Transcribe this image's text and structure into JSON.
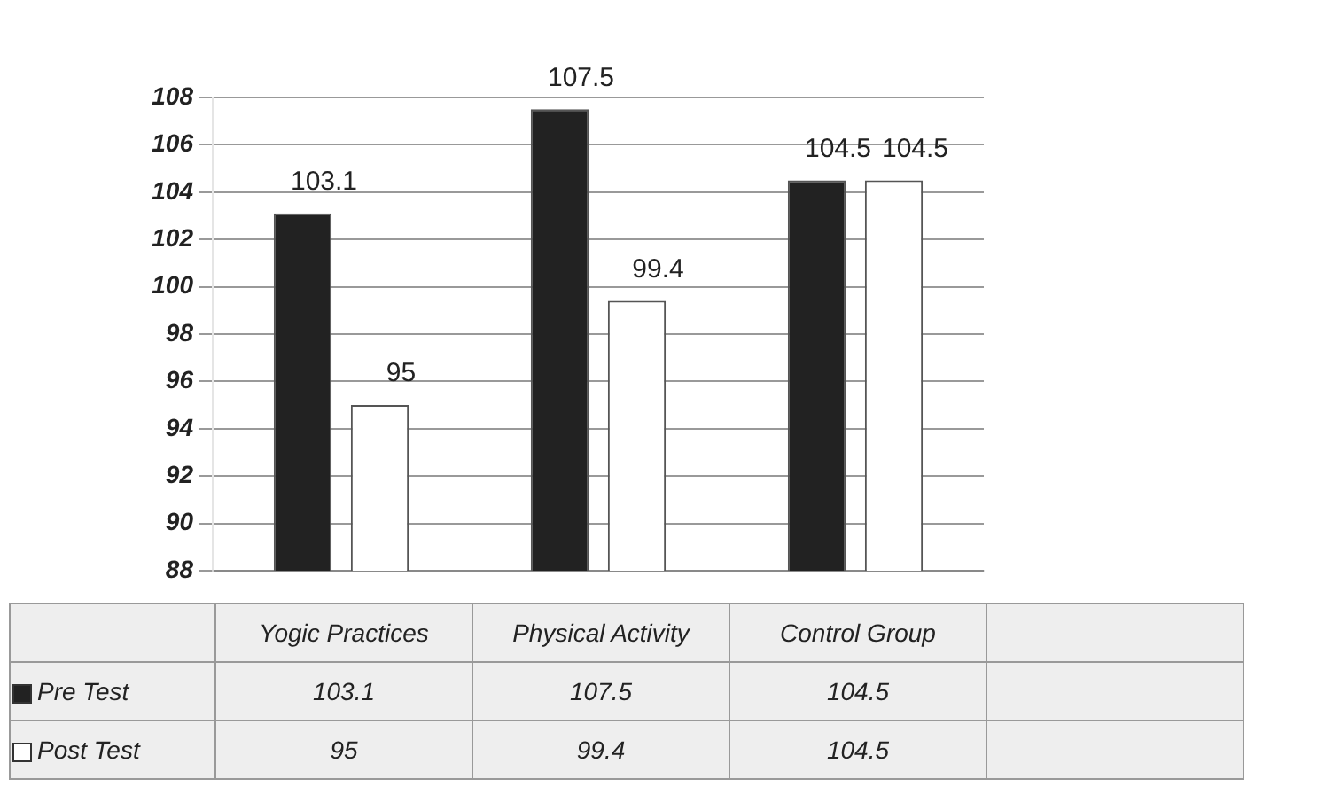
{
  "chart_data": {
    "type": "bar",
    "categories": [
      "Yogic Practices",
      "Physical Activity",
      "Control Group"
    ],
    "series": [
      {
        "name": "Pre Test",
        "color": "#222222",
        "values": [
          103.1,
          107.5,
          104.5
        ]
      },
      {
        "name": "Post Test",
        "color": "#ffffff",
        "values": [
          95,
          99.4,
          104.5
        ]
      }
    ],
    "ylim": [
      88,
      108
    ],
    "yticks": [
      88,
      90,
      92,
      94,
      96,
      98,
      100,
      102,
      104,
      106,
      108
    ],
    "grid": "y",
    "legend": "bottom left",
    "data_labels": true,
    "annotations": [
      "103.1",
      "107.5",
      "104.5",
      "95",
      "99.4",
      "104.5"
    ]
  }
}
